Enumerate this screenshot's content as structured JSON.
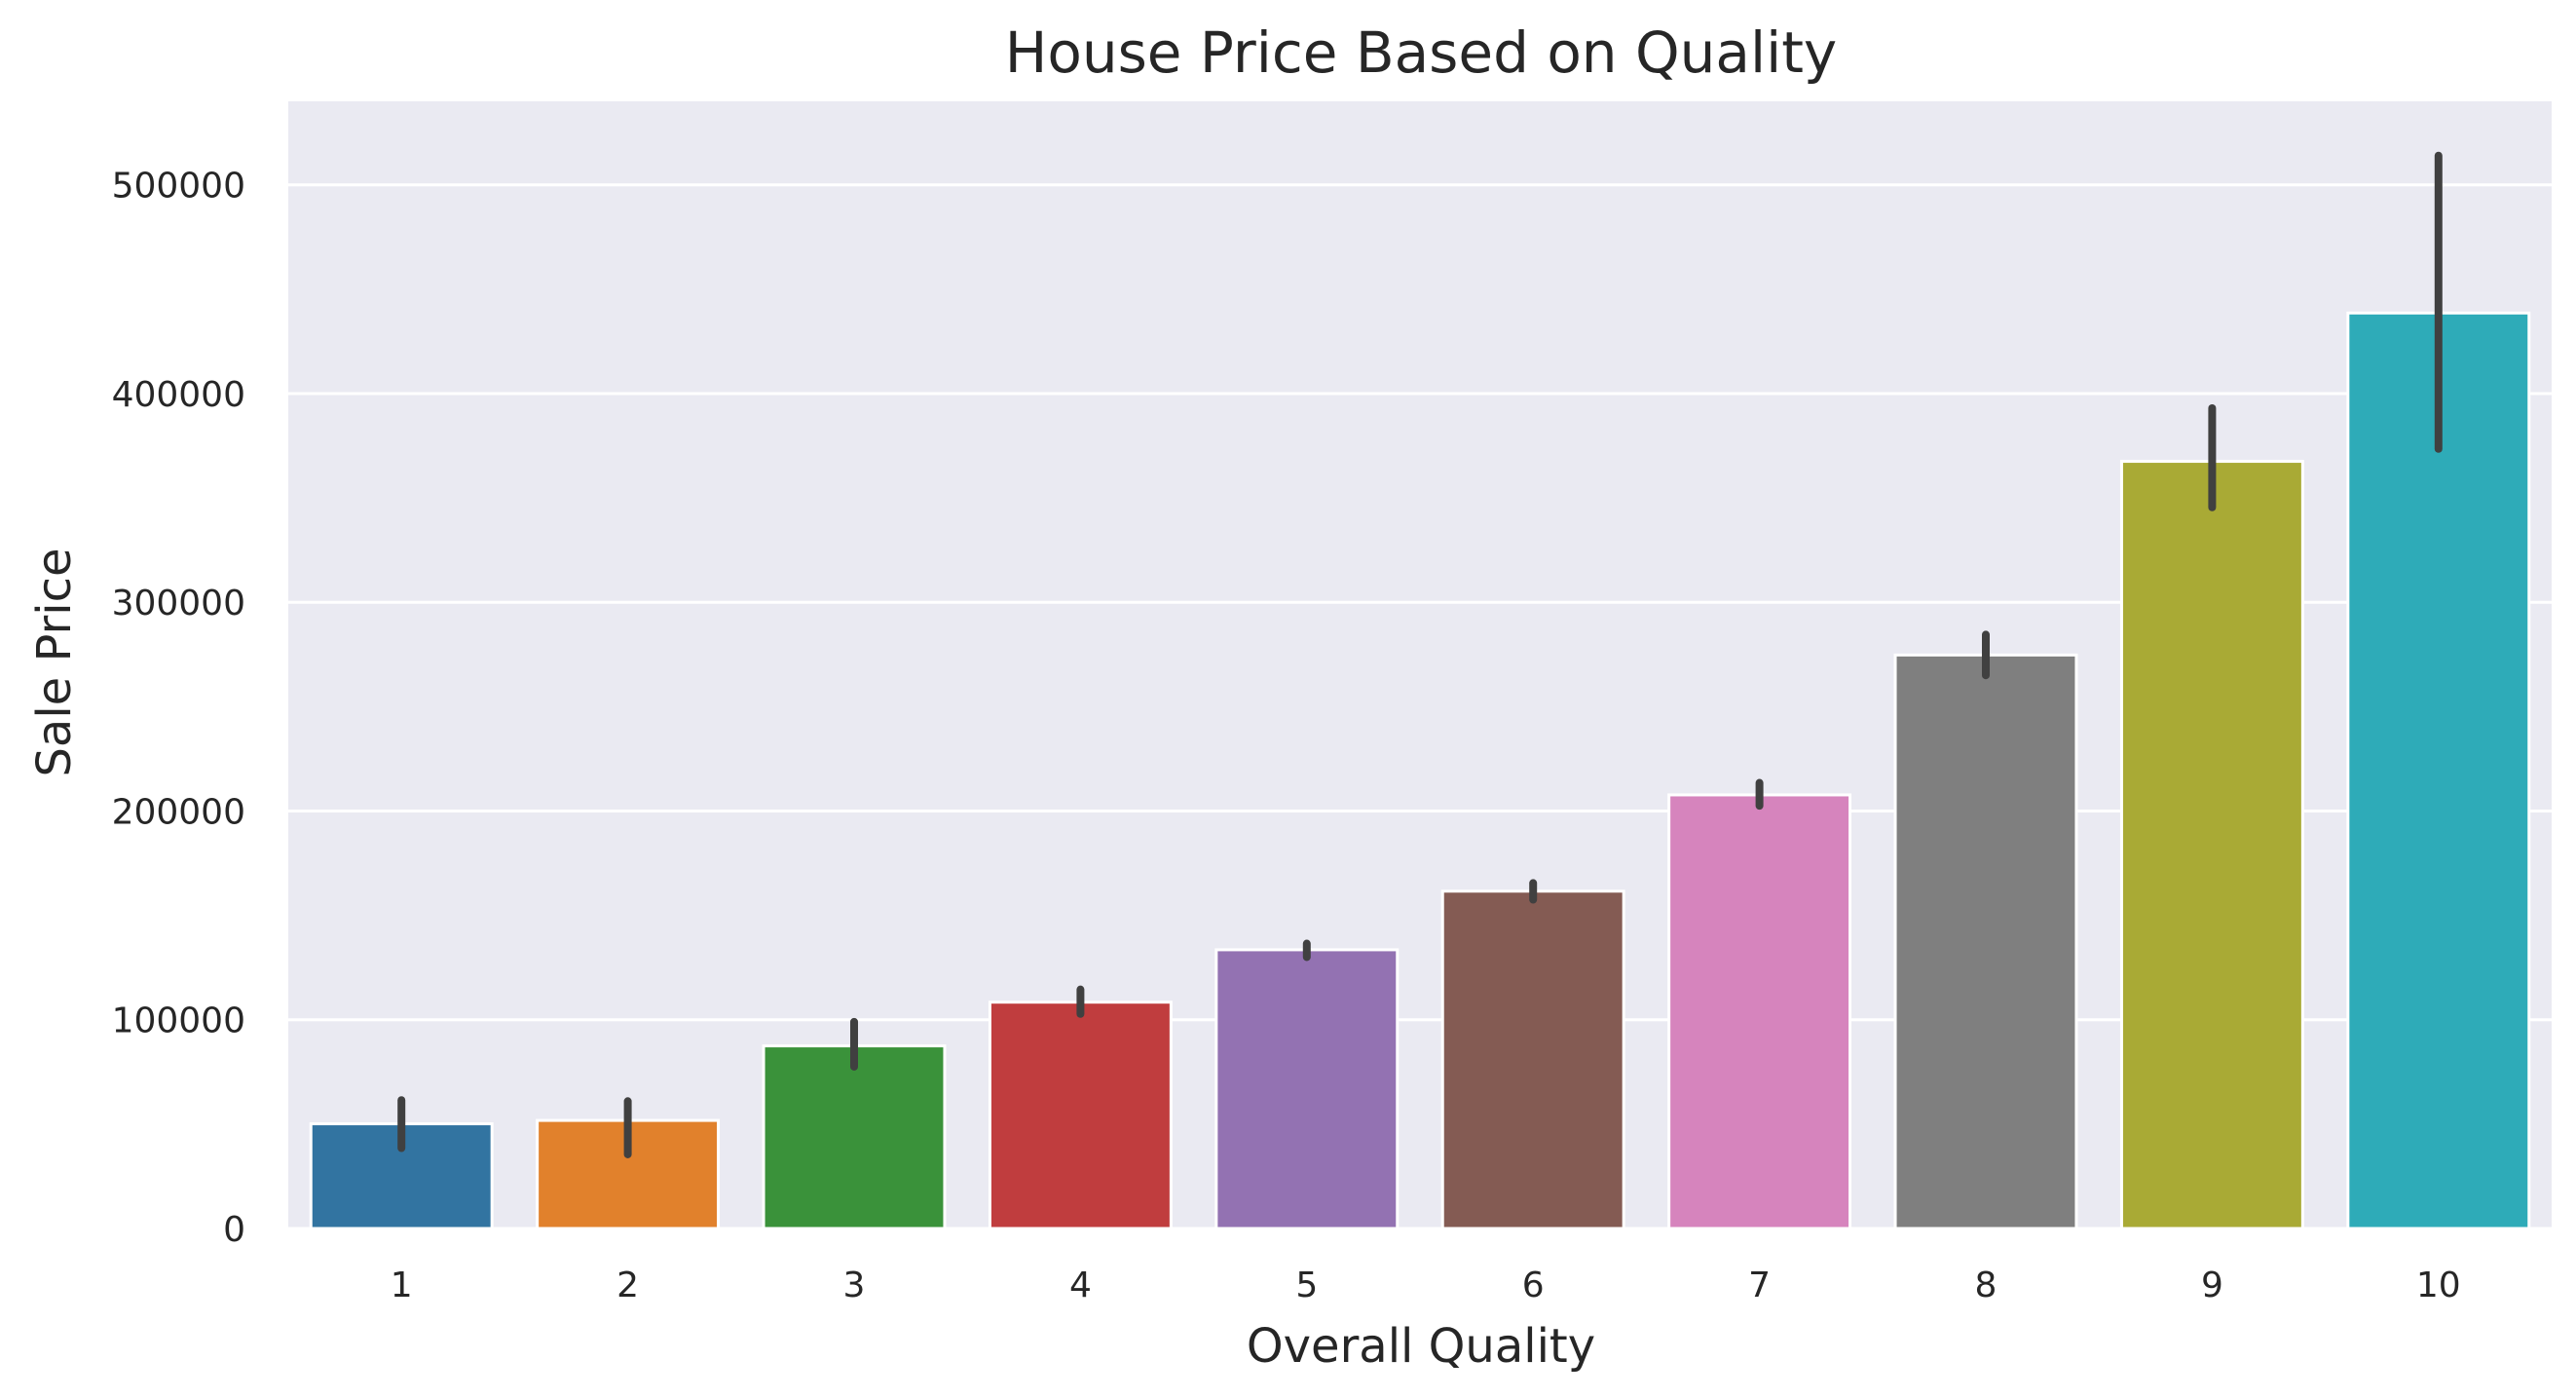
{
  "chart_data": {
    "type": "bar",
    "title": "House Price Based on Quality",
    "xlabel": "Overall Quality",
    "ylabel": "Sale Price",
    "categories": [
      "1",
      "2",
      "3",
      "4",
      "5",
      "6",
      "7",
      "8",
      "9",
      "10"
    ],
    "values": [
      50150,
      51770,
      87474,
      108421,
      133523,
      161603,
      207716,
      274736,
      367513,
      438588
    ],
    "error_low": [
      38500,
      35500,
      77500,
      102800,
      130000,
      157500,
      202500,
      265000,
      345500,
      373500
    ],
    "error_high": [
      61500,
      61000,
      99000,
      114500,
      136500,
      165500,
      213500,
      284500,
      393000,
      514000
    ],
    "ylim": [
      0,
      540000
    ],
    "yticks": [
      0,
      100000,
      200000,
      300000,
      400000,
      500000
    ],
    "ytick_labels": [
      "0",
      "100000",
      "200000",
      "300000",
      "400000",
      "500000"
    ],
    "grid": true,
    "colors": [
      "#3274a1",
      "#e1812c",
      "#3a923a",
      "#c03d3e",
      "#9372b2",
      "#845b53",
      "#d684bd",
      "#7f7f7f",
      "#a9aa35",
      "#2eabb8"
    ],
    "background_color": "#eaeaf2",
    "grid_color": "#ffffff",
    "error_color": "#404040"
  }
}
